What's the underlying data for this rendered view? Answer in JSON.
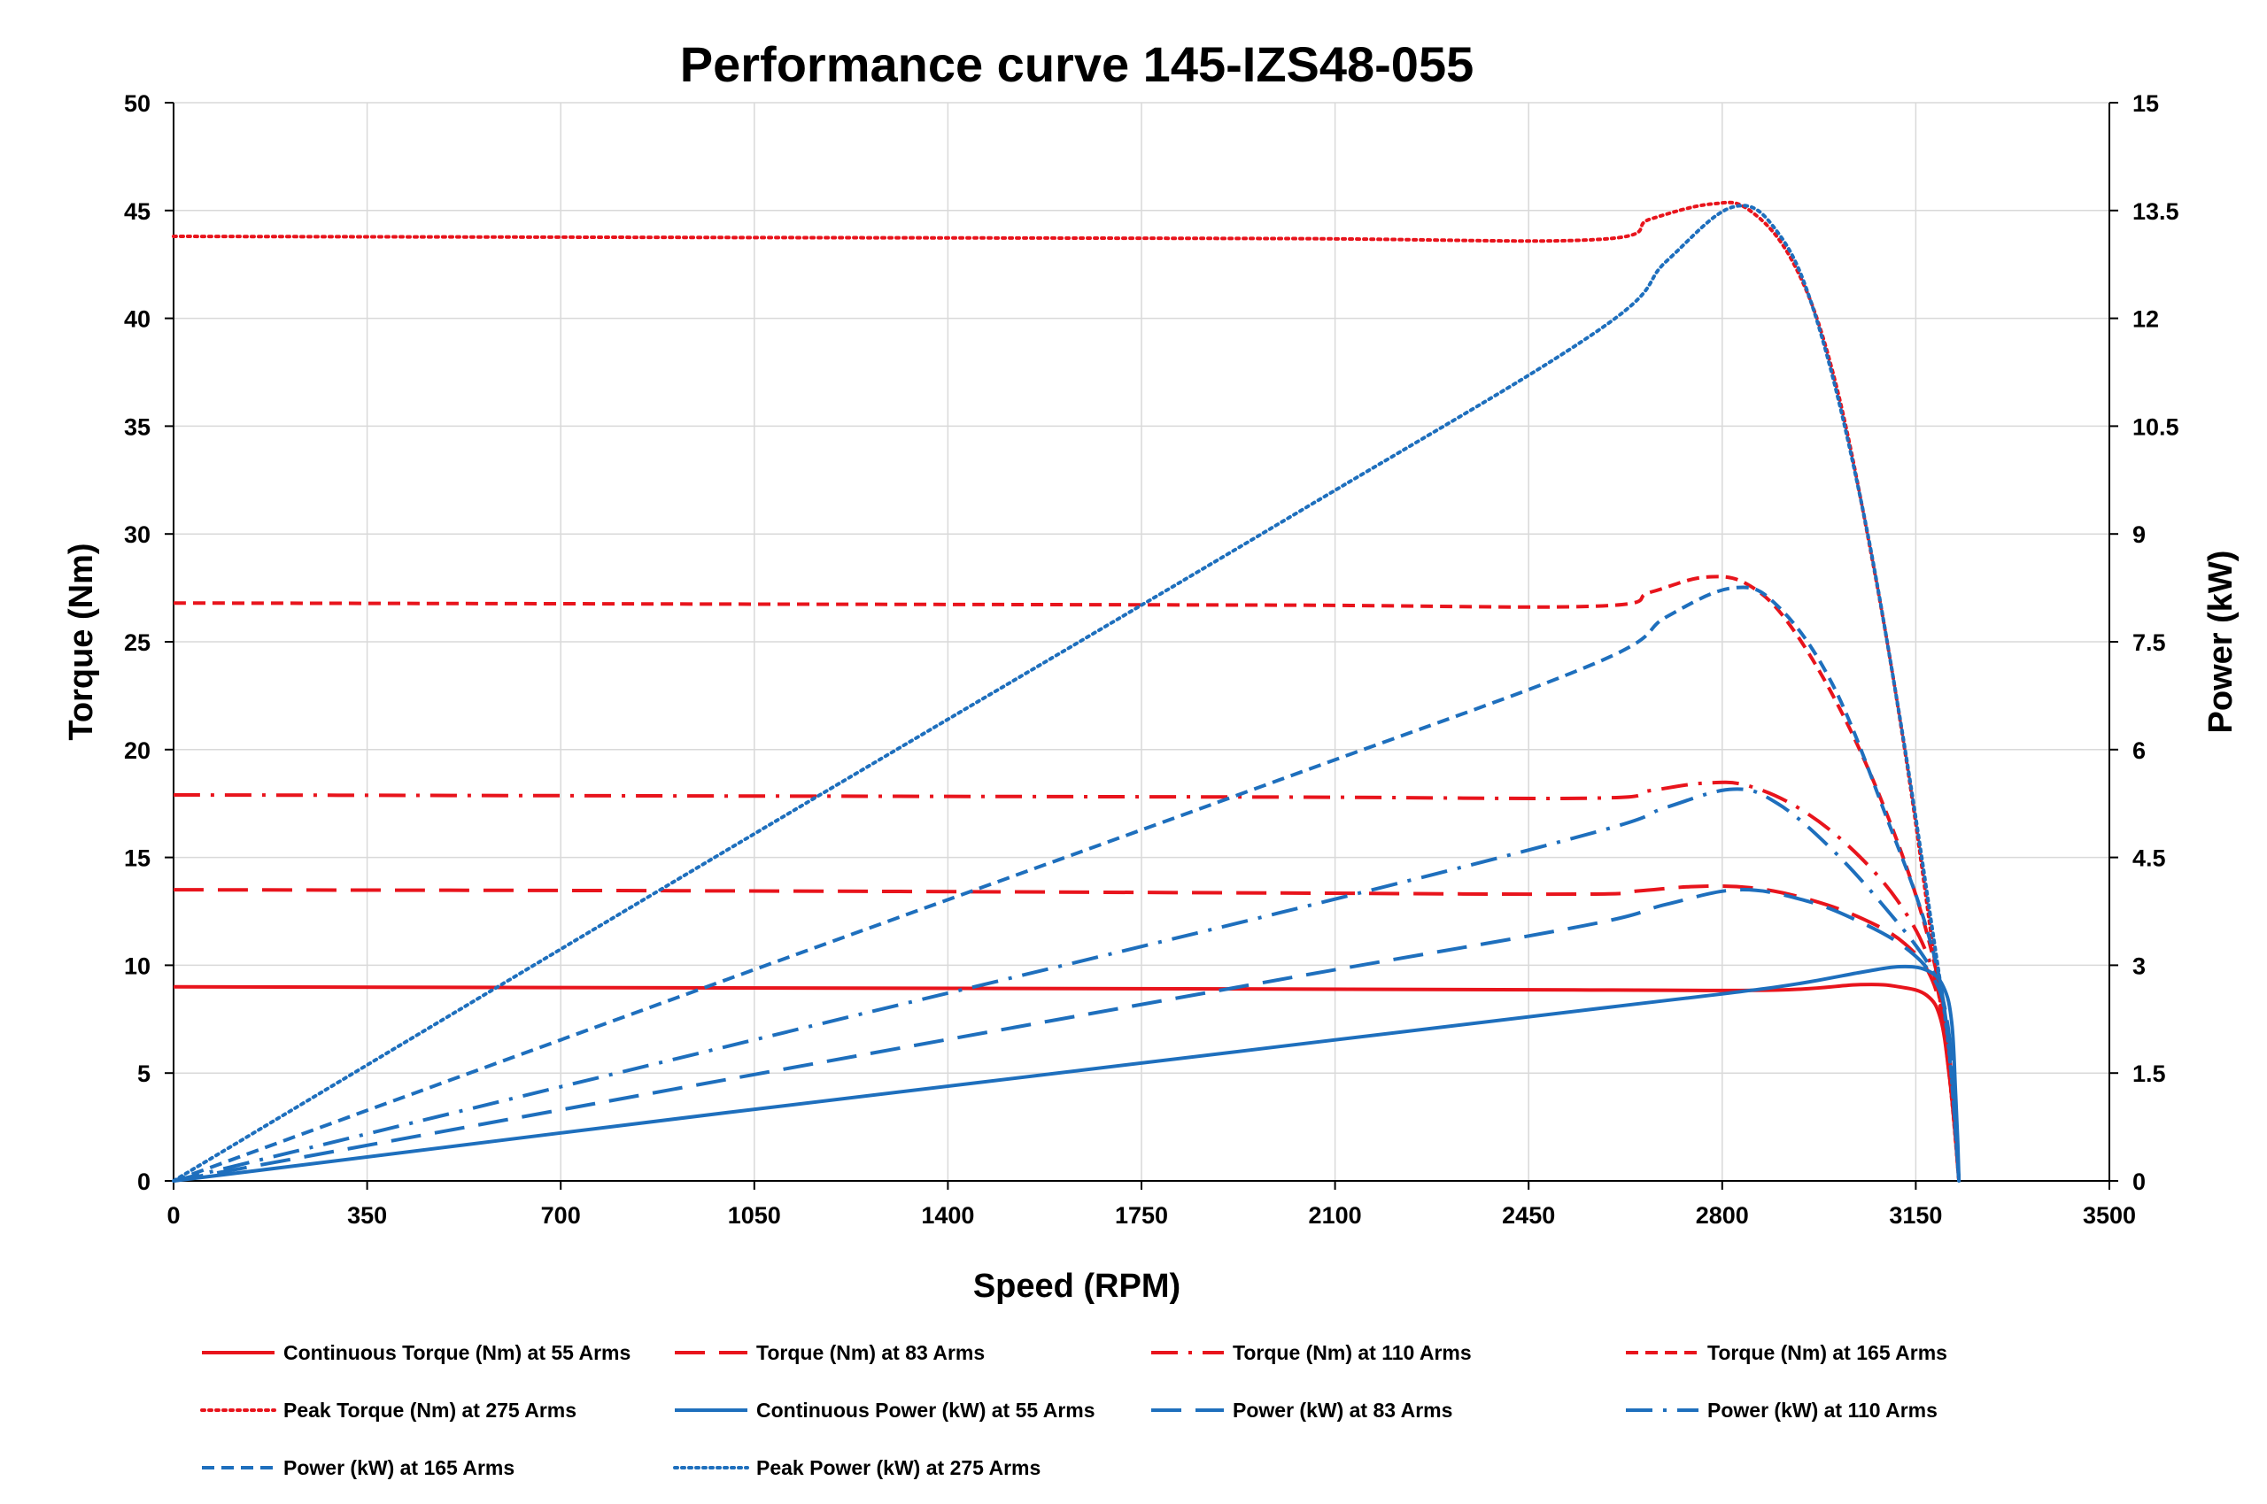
{
  "chart_data": {
    "type": "line",
    "title": "Performance curve 145-IZS48-055",
    "xlabel": "Speed (RPM)",
    "ylabel": "Torque (Nm)",
    "y2label": "Power (kW)",
    "xlim": [
      0,
      3500
    ],
    "ylim": [
      0,
      50
    ],
    "y2lim": [
      0,
      15
    ],
    "xticks": [
      "0",
      "350",
      "700",
      "1050",
      "1400",
      "1750",
      "2100",
      "2450",
      "2800",
      "3150",
      "3500"
    ],
    "yticks": [
      "0",
      "5",
      "10",
      "15",
      "20",
      "25",
      "30",
      "35",
      "40",
      "45",
      "50"
    ],
    "y2ticks": [
      "0",
      "1.5",
      "3",
      "4.5",
      "6",
      "7.5",
      "9",
      "10.5",
      "12",
      "13.5",
      "15"
    ],
    "grid": true,
    "legend_position": "bottom",
    "colors": {
      "torque": "#e8141c",
      "power": "#1e6fbd"
    },
    "series": [
      {
        "name": "Continuous Torque (Nm) at 55 Arms",
        "axis": "left",
        "color": "#e8141c",
        "dash": "solid",
        "points": [
          [
            0,
            9.0
          ],
          [
            1000,
            8.95
          ],
          [
            2000,
            8.9
          ],
          [
            2600,
            8.85
          ],
          [
            2900,
            8.85
          ],
          [
            3050,
            9.1
          ],
          [
            3120,
            9.0
          ],
          [
            3170,
            8.6
          ],
          [
            3195,
            7.5
          ],
          [
            3210,
            5.0
          ],
          [
            3220,
            2.5
          ],
          [
            3228,
            0
          ]
        ]
      },
      {
        "name": "Torque (Nm) at 83 Arms",
        "axis": "left",
        "color": "#e8141c",
        "dash": "longdash",
        "points": [
          [
            0,
            13.5
          ],
          [
            1000,
            13.45
          ],
          [
            2000,
            13.35
          ],
          [
            2550,
            13.3
          ],
          [
            2650,
            13.45
          ],
          [
            2750,
            13.65
          ],
          [
            2850,
            13.6
          ],
          [
            2950,
            13.1
          ],
          [
            3050,
            12.2
          ],
          [
            3130,
            11.0
          ],
          [
            3180,
            9.3
          ],
          [
            3205,
            6.5
          ],
          [
            3218,
            3.5
          ],
          [
            3228,
            0
          ]
        ]
      },
      {
        "name": "Torque (Nm) at 110 Arms",
        "axis": "left",
        "color": "#e8141c",
        "dash": "dashdot",
        "points": [
          [
            0,
            17.9
          ],
          [
            1000,
            17.85
          ],
          [
            2000,
            17.8
          ],
          [
            2570,
            17.75
          ],
          [
            2670,
            18.1
          ],
          [
            2770,
            18.45
          ],
          [
            2850,
            18.3
          ],
          [
            2950,
            17.1
          ],
          [
            3050,
            15.0
          ],
          [
            3130,
            12.5
          ],
          [
            3180,
            9.8
          ],
          [
            3205,
            6.5
          ],
          [
            3218,
            3.5
          ],
          [
            3228,
            0
          ]
        ]
      },
      {
        "name": "Torque (Nm) at 165 Arms",
        "axis": "left",
        "color": "#e8141c",
        "dash": "shortdash",
        "points": [
          [
            0,
            26.8
          ],
          [
            1000,
            26.75
          ],
          [
            2000,
            26.7
          ],
          [
            2570,
            26.65
          ],
          [
            2670,
            27.3
          ],
          [
            2770,
            28.0
          ],
          [
            2850,
            27.6
          ],
          [
            2930,
            25.5
          ],
          [
            3030,
            21.0
          ],
          [
            3120,
            15.5
          ],
          [
            3180,
            10.5
          ],
          [
            3210,
            6.0
          ],
          [
            3228,
            0
          ]
        ]
      },
      {
        "name": "Peak Torque (Nm) at 275 Arms",
        "axis": "left",
        "color": "#e8141c",
        "dash": "dotted",
        "points": [
          [
            0,
            43.8
          ],
          [
            1000,
            43.75
          ],
          [
            2000,
            43.7
          ],
          [
            2570,
            43.65
          ],
          [
            2670,
            44.6
          ],
          [
            2780,
            45.3
          ],
          [
            2850,
            45.0
          ],
          [
            2930,
            42.5
          ],
          [
            3000,
            37.5
          ],
          [
            3070,
            29.0
          ],
          [
            3130,
            20.0
          ],
          [
            3180,
            11.0
          ],
          [
            3210,
            5.0
          ],
          [
            3228,
            0
          ]
        ]
      },
      {
        "name": "Continuous Power (kW) at 55 Arms",
        "axis": "right",
        "color": "#1e6fbd",
        "dash": "solid",
        "points": [
          [
            0,
            0
          ],
          [
            1000,
            0.95
          ],
          [
            2000,
            1.87
          ],
          [
            2600,
            2.42
          ],
          [
            2900,
            2.7
          ],
          [
            3050,
            2.9
          ],
          [
            3120,
            2.98
          ],
          [
            3170,
            2.93
          ],
          [
            3200,
            2.7
          ],
          [
            3215,
            2.2
          ],
          [
            3222,
            1.2
          ],
          [
            3226,
            0.5
          ],
          [
            3228,
            0
          ]
        ]
      },
      {
        "name": "Power (kW) at 83 Arms",
        "axis": "right",
        "color": "#1e6fbd",
        "dash": "longdash",
        "points": [
          [
            0,
            0
          ],
          [
            1000,
            1.41
          ],
          [
            2000,
            2.8
          ],
          [
            2550,
            3.55
          ],
          [
            2700,
            3.85
          ],
          [
            2830,
            4.05
          ],
          [
            2950,
            3.9
          ],
          [
            3050,
            3.6
          ],
          [
            3130,
            3.25
          ],
          [
            3180,
            2.85
          ],
          [
            3205,
            2.3
          ],
          [
            3218,
            1.3
          ],
          [
            3228,
            0
          ]
        ]
      },
      {
        "name": "Power (kW) at 110 Arms",
        "axis": "right",
        "color": "#1e6fbd",
        "dash": "dashdot",
        "points": [
          [
            0,
            0
          ],
          [
            1000,
            1.87
          ],
          [
            2000,
            3.73
          ],
          [
            2570,
            4.85
          ],
          [
            2700,
            5.2
          ],
          [
            2820,
            5.45
          ],
          [
            2900,
            5.25
          ],
          [
            3000,
            4.6
          ],
          [
            3100,
            3.75
          ],
          [
            3170,
            3.05
          ],
          [
            3200,
            2.5
          ],
          [
            3218,
            1.4
          ],
          [
            3228,
            0
          ]
        ]
      },
      {
        "name": "Power (kW) at 165 Arms",
        "axis": "right",
        "color": "#1e6fbd",
        "dash": "shortdash",
        "points": [
          [
            0,
            0
          ],
          [
            1000,
            2.8
          ],
          [
            2000,
            5.58
          ],
          [
            2570,
            7.2
          ],
          [
            2700,
            7.85
          ],
          [
            2820,
            8.25
          ],
          [
            2900,
            8.0
          ],
          [
            3000,
            6.9
          ],
          [
            3100,
            5.0
          ],
          [
            3170,
            3.5
          ],
          [
            3205,
            2.2
          ],
          [
            3228,
            0
          ]
        ]
      },
      {
        "name": "Peak Power (kW) at 275 Arms",
        "axis": "right",
        "color": "#1e6fbd",
        "dash": "dotted",
        "points": [
          [
            0,
            0
          ],
          [
            1000,
            4.6
          ],
          [
            2000,
            9.15
          ],
          [
            2570,
            11.8
          ],
          [
            2700,
            12.8
          ],
          [
            2820,
            13.55
          ],
          [
            2900,
            13.2
          ],
          [
            2970,
            12.0
          ],
          [
            3050,
            9.5
          ],
          [
            3120,
            6.5
          ],
          [
            3180,
            3.5
          ],
          [
            3210,
            1.8
          ],
          [
            3228,
            0
          ]
        ]
      }
    ]
  }
}
